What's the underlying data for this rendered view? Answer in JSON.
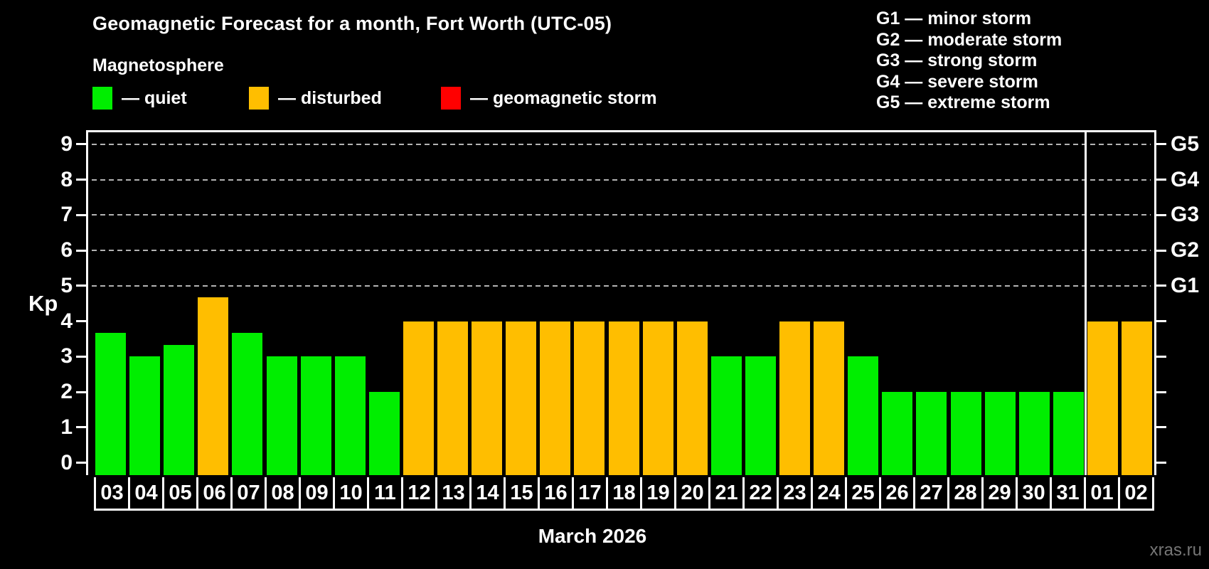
{
  "title": "Geomagnetic Forecast for a month, Fort Worth (UTC-05)",
  "subtitle": "Magnetosphere",
  "legend": {
    "items": [
      {
        "label": "— quiet",
        "state": "quiet",
        "color": "#00ee00"
      },
      {
        "label": "— disturbed",
        "state": "disturbed",
        "color": "#ffbe00"
      },
      {
        "label": "— geomagnetic storm",
        "state": "storm",
        "color": "#ff0000"
      }
    ]
  },
  "g_scale_legend": [
    "G1 — minor storm",
    "G2 — moderate storm",
    "G3 — strong storm",
    "G4 — severe storm",
    "G5 — extreme storm"
  ],
  "y_axis": {
    "label": "Kp",
    "ticks": [
      9,
      8,
      7,
      6,
      5,
      4,
      3,
      2,
      1,
      0
    ]
  },
  "right_axis": {
    "ticks": [
      0,
      1,
      2,
      3,
      4,
      5,
      6,
      7,
      8,
      9
    ],
    "labels": [
      {
        "kp": 9,
        "text": "G5"
      },
      {
        "kp": 8,
        "text": "G4"
      },
      {
        "kp": 7,
        "text": "G3"
      },
      {
        "kp": 6,
        "text": "G2"
      },
      {
        "kp": 5,
        "text": "G1"
      }
    ]
  },
  "x_title": "March 2026",
  "watermark": "xras.ru",
  "chart_data": {
    "type": "bar",
    "title": "Geomagnetic Forecast for a month, Fort Worth (UTC-05)",
    "xlabel": "March 2026",
    "ylabel": "Kp",
    "ylim": [
      -0.35,
      9.4
    ],
    "grid": "dashed horizontal at Kp 5-9",
    "gridlines_kp": [
      5,
      6,
      7,
      8,
      9
    ],
    "month_separator_after_index": 28,
    "categories": [
      "03",
      "04",
      "05",
      "06",
      "07",
      "08",
      "09",
      "10",
      "11",
      "12",
      "13",
      "14",
      "15",
      "16",
      "17",
      "18",
      "19",
      "20",
      "21",
      "22",
      "23",
      "24",
      "25",
      "26",
      "27",
      "28",
      "29",
      "30",
      "31",
      "01",
      "02"
    ],
    "values": [
      3.67,
      3,
      3.33,
      4.67,
      3.67,
      3,
      3,
      3,
      2,
      4,
      4,
      4,
      4,
      4,
      4,
      4,
      4,
      4,
      3,
      3,
      4,
      4,
      3,
      2,
      2,
      2,
      2,
      2,
      2,
      4,
      4
    ],
    "states": [
      "quiet",
      "quiet",
      "quiet",
      "disturbed",
      "quiet",
      "quiet",
      "quiet",
      "quiet",
      "quiet",
      "disturbed",
      "disturbed",
      "disturbed",
      "disturbed",
      "disturbed",
      "disturbed",
      "disturbed",
      "disturbed",
      "disturbed",
      "quiet",
      "quiet",
      "disturbed",
      "disturbed",
      "quiet",
      "quiet",
      "quiet",
      "quiet",
      "quiet",
      "quiet",
      "quiet",
      "disturbed",
      "disturbed"
    ],
    "colors": {
      "quiet": "#00ee00",
      "disturbed": "#ffbe00",
      "storm": "#ff0000"
    }
  }
}
